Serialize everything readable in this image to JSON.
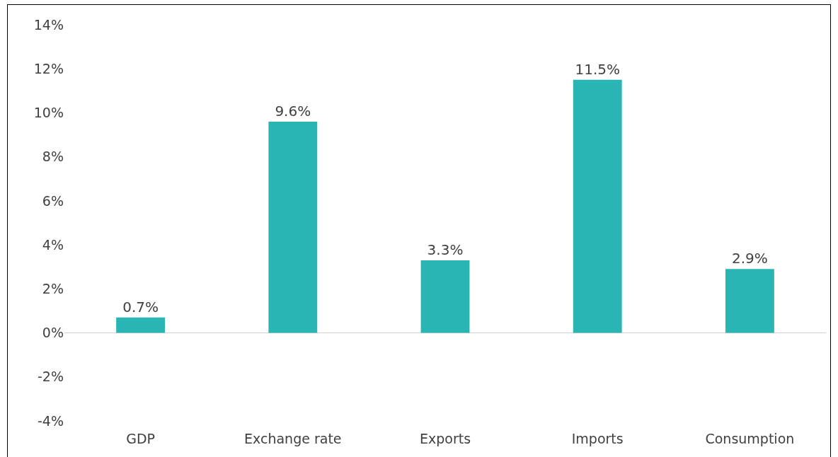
{
  "chart_data": {
    "type": "bar",
    "categories": [
      "GDP",
      "Exchange rate",
      "Exports",
      "Imports",
      "Consumption"
    ],
    "values": [
      0.7,
      9.6,
      3.3,
      11.5,
      2.9
    ],
    "value_labels": [
      "0.7%",
      "9.6%",
      "3.3%",
      "11.5%",
      "2.9%"
    ],
    "color": "#2ab5b5",
    "ylim": [
      -4,
      14
    ],
    "yticks": [
      {
        "value": -4,
        "label": "-4%"
      },
      {
        "value": -2,
        "label": "-2%"
      },
      {
        "value": 0,
        "label": "0%"
      },
      {
        "value": 2,
        "label": "2%"
      },
      {
        "value": 4,
        "label": "4%"
      },
      {
        "value": 6,
        "label": "6%"
      },
      {
        "value": 8,
        "label": "8%"
      },
      {
        "value": 10,
        "label": "10%"
      },
      {
        "value": 12,
        "label": "12%"
      },
      {
        "value": 14,
        "label": "14%"
      }
    ],
    "grid": false
  }
}
